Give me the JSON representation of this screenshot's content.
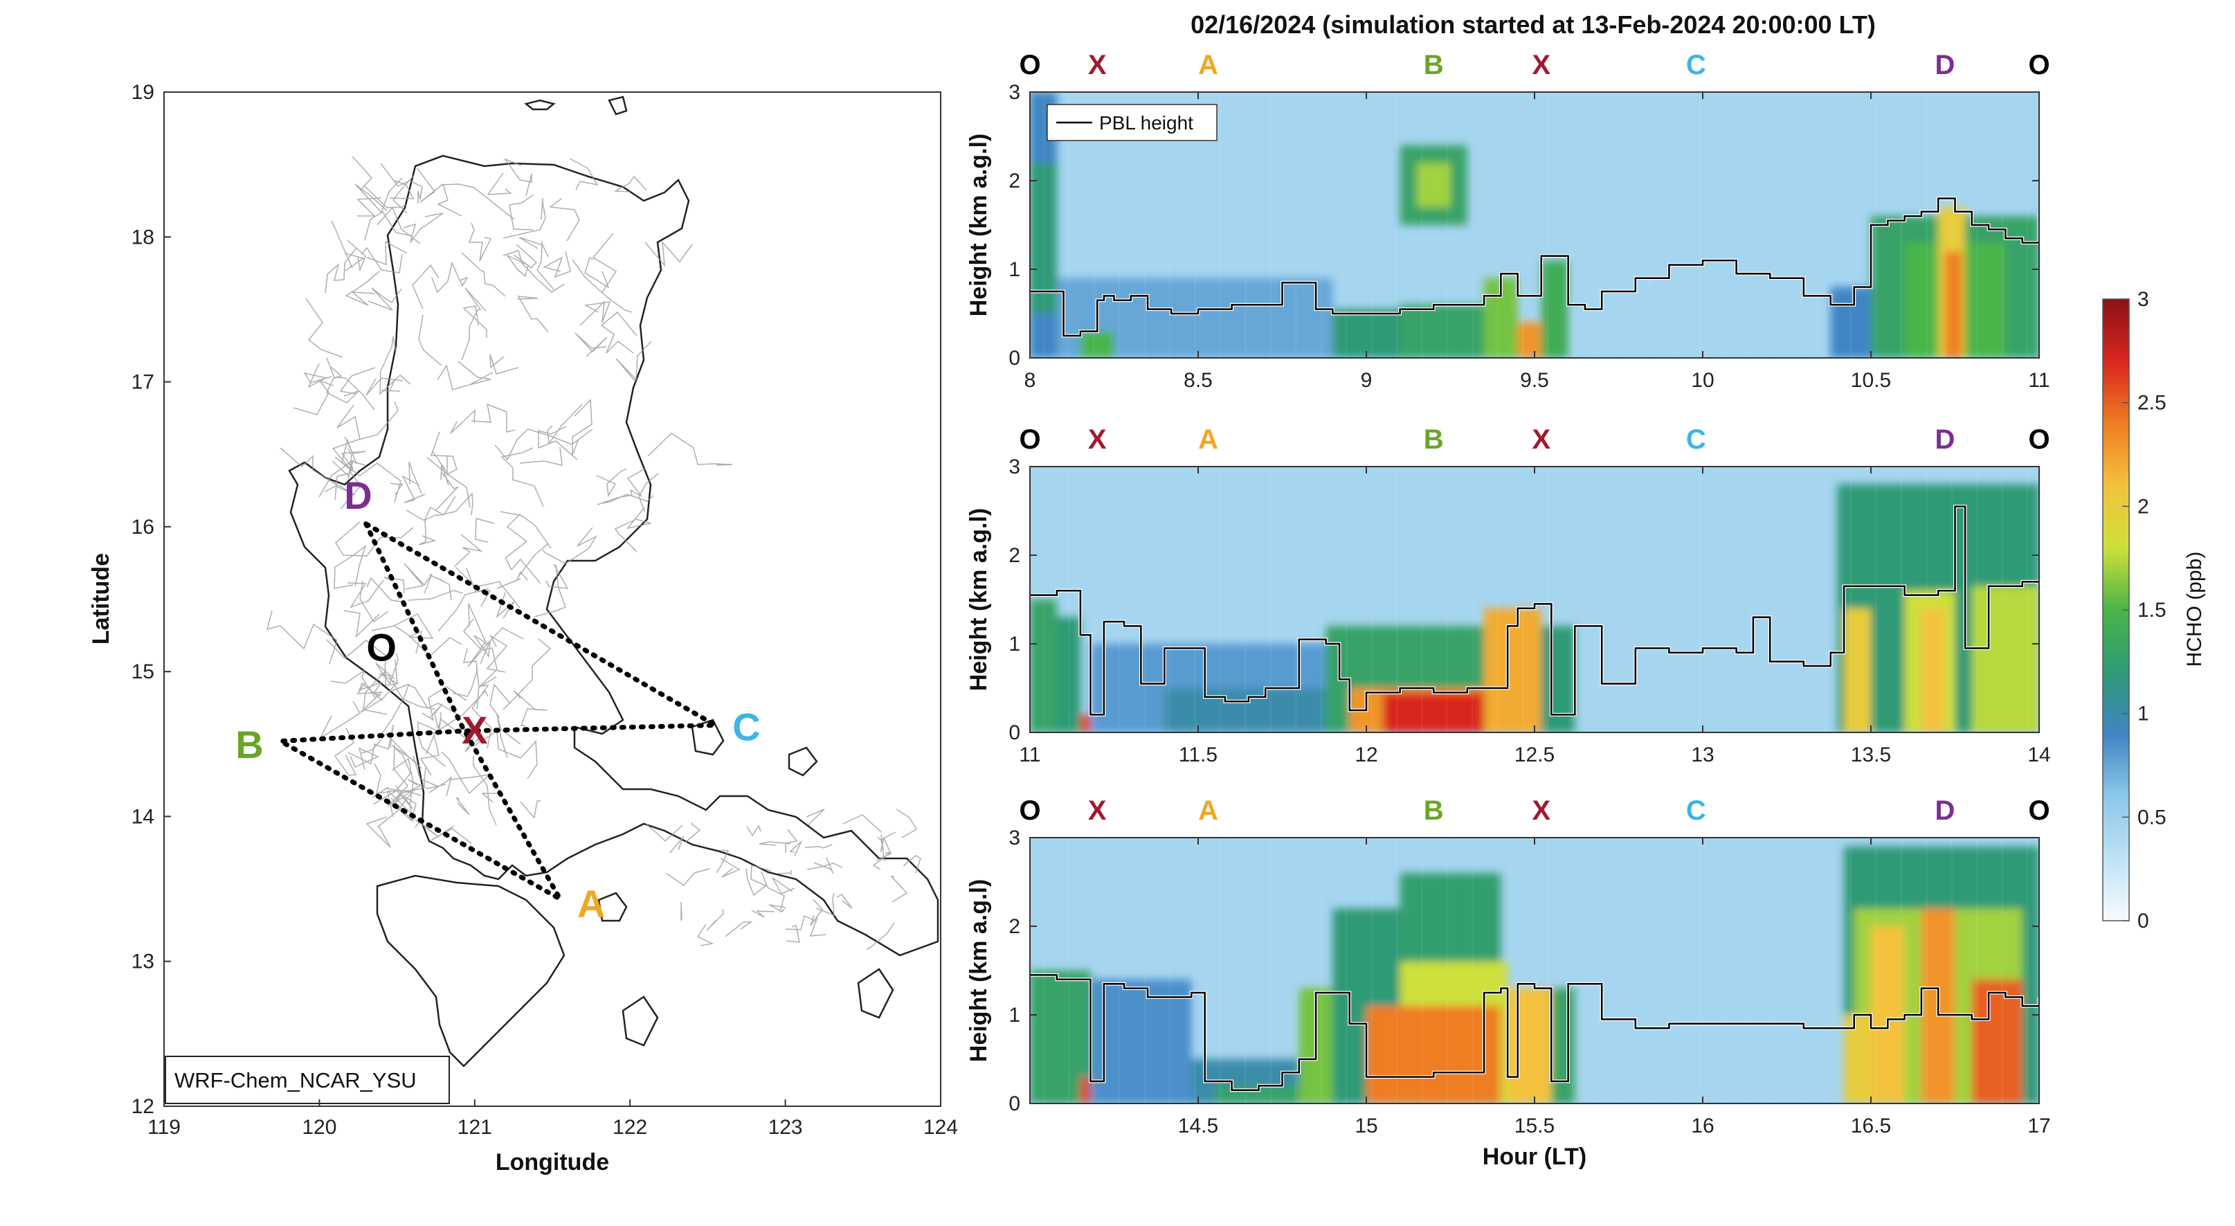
{
  "figure": {
    "title": "02/16/2024 (simulation started at 13-Feb-2024 20:00:00 LT)"
  },
  "colors": {
    "O": "#000000",
    "X": "#a0192f",
    "A": "#f0a722",
    "B": "#6aa527",
    "C": "#3db4e5",
    "D": "#7b2f94",
    "pbl": "#000000"
  },
  "map": {
    "xlabel": "Longitude",
    "ylabel": "Latitude",
    "xlim": [
      119,
      124
    ],
    "ylim": [
      12,
      19
    ],
    "xticks": [
      "119",
      "120",
      "121",
      "122",
      "123",
      "124"
    ],
    "yticks": [
      "12",
      "13",
      "14",
      "15",
      "16",
      "17",
      "18",
      "19"
    ],
    "model_label": "WRF-Chem_NCAR_YSU",
    "points": [
      {
        "name": "D",
        "lon": 120.25,
        "lat": 16.22
      },
      {
        "name": "O",
        "lon": 120.4,
        "lat": 15.17
      },
      {
        "name": "X",
        "lon": 121.0,
        "lat": 14.6
      },
      {
        "name": "B",
        "lon": 119.55,
        "lat": 14.5
      },
      {
        "name": "C",
        "lon": 122.75,
        "lat": 14.62
      },
      {
        "name": "A",
        "lon": 121.75,
        "lat": 13.4
      }
    ],
    "route": [
      {
        "lon": 120.3,
        "lat": 16.02
      },
      {
        "lon": 120.92,
        "lat": 14.62
      },
      {
        "lon": 121.55,
        "lat": 13.43
      },
      {
        "lon": 119.75,
        "lat": 14.52
      },
      {
        "lon": 120.92,
        "lat": 14.59
      },
      {
        "lon": 122.55,
        "lat": 14.63
      },
      {
        "lon": 120.3,
        "lat": 16.02
      }
    ]
  },
  "colorbar": {
    "label": "HCHO (ppb)",
    "ticks": [
      "0",
      "0.5",
      "1",
      "1.5",
      "2",
      "2.5",
      "3"
    ],
    "range": [
      0,
      3
    ],
    "stops": [
      "#f7fcff",
      "#bfe2f5",
      "#8cc8ea",
      "#3f85c4",
      "#2f9a76",
      "#49b548",
      "#cde03a",
      "#f4c23c",
      "#ef7d22",
      "#d9261f",
      "#8a1214"
    ]
  },
  "chart_data": [
    {
      "type": "heatmap",
      "panel": "top",
      "xlabel": "",
      "ylabel": "Height (km a.g.l)",
      "xlim": [
        8,
        11
      ],
      "ylim": [
        0,
        3
      ],
      "xticks": [
        "8",
        "8.5",
        "9",
        "9.5",
        "10",
        "10.5",
        "11"
      ],
      "yticks": [
        "0",
        "1",
        "2",
        "3"
      ],
      "legend": "PBL height",
      "legend_position": "top-left",
      "point_labels": [
        {
          "label": "O",
          "x": 8.0
        },
        {
          "label": "X",
          "x": 8.2
        },
        {
          "label": "A",
          "x": 8.53
        },
        {
          "label": "B",
          "x": 9.2
        },
        {
          "label": "X",
          "x": 9.52
        },
        {
          "label": "C",
          "x": 9.98
        },
        {
          "label": "D",
          "x": 10.72
        },
        {
          "label": "O",
          "x": 11.0
        }
      ],
      "pbl_height": {
        "x": [
          8.0,
          8.08,
          8.1,
          8.15,
          8.18,
          8.2,
          8.22,
          8.25,
          8.3,
          8.35,
          8.42,
          8.5,
          8.6,
          8.7,
          8.75,
          8.8,
          8.85,
          8.9,
          9.0,
          9.1,
          9.2,
          9.3,
          9.35,
          9.4,
          9.45,
          9.5,
          9.52,
          9.55,
          9.6,
          9.65,
          9.7,
          9.8,
          9.9,
          10.0,
          10.1,
          10.2,
          10.3,
          10.38,
          10.45,
          10.5,
          10.55,
          10.6,
          10.65,
          10.7,
          10.75,
          10.8,
          10.85,
          10.9,
          10.95,
          11.0
        ],
        "y": [
          0.75,
          0.75,
          0.25,
          0.3,
          0.3,
          0.65,
          0.7,
          0.65,
          0.7,
          0.55,
          0.5,
          0.55,
          0.6,
          0.6,
          0.85,
          0.85,
          0.55,
          0.5,
          0.5,
          0.55,
          0.6,
          0.6,
          0.7,
          0.95,
          0.7,
          0.7,
          1.15,
          1.15,
          0.6,
          0.55,
          0.75,
          0.9,
          1.05,
          1.1,
          0.95,
          0.9,
          0.7,
          0.6,
          0.8,
          1.5,
          1.55,
          1.6,
          1.65,
          1.8,
          1.65,
          1.5,
          1.45,
          1.35,
          1.3,
          1.65
        ]
      },
      "hcho_cells": [
        {
          "x0": 8.0,
          "x1": 8.08,
          "y0": 0.0,
          "y1": 3.0,
          "v": 0.9
        },
        {
          "x0": 8.0,
          "x1": 8.08,
          "y0": 0.5,
          "y1": 2.2,
          "v": 1.2
        },
        {
          "x0": 8.08,
          "x1": 8.9,
          "y0": 0.0,
          "y1": 0.9,
          "v": 0.75
        },
        {
          "x0": 8.15,
          "x1": 8.25,
          "y0": 0.0,
          "y1": 0.3,
          "v": 1.5
        },
        {
          "x0": 8.9,
          "x1": 9.4,
          "y0": 0.0,
          "y1": 0.55,
          "v": 1.2
        },
        {
          "x0": 9.1,
          "x1": 9.35,
          "y0": 0.0,
          "y1": 0.6,
          "v": 1.3
        },
        {
          "x0": 9.35,
          "x1": 9.45,
          "y0": 0.0,
          "y1": 0.9,
          "v": 1.6
        },
        {
          "x0": 9.45,
          "x1": 9.52,
          "y0": 0.0,
          "y1": 0.4,
          "v": 2.3
        },
        {
          "x0": 9.52,
          "x1": 9.6,
          "y0": 0.0,
          "y1": 1.1,
          "v": 1.4
        },
        {
          "x0": 9.1,
          "x1": 9.3,
          "y0": 1.5,
          "y1": 2.4,
          "v": 1.3
        },
        {
          "x0": 9.15,
          "x1": 9.25,
          "y0": 1.7,
          "y1": 2.2,
          "v": 1.7
        },
        {
          "x0": 10.38,
          "x1": 10.5,
          "y0": 0.0,
          "y1": 0.8,
          "v": 0.9
        },
        {
          "x0": 10.5,
          "x1": 11.0,
          "y0": 0.0,
          "y1": 1.6,
          "v": 1.3
        },
        {
          "x0": 10.6,
          "x1": 10.9,
          "y0": 0.0,
          "y1": 1.3,
          "v": 1.5
        },
        {
          "x0": 10.7,
          "x1": 10.78,
          "y0": 0.0,
          "y1": 1.7,
          "v": 2.0
        },
        {
          "x0": 10.72,
          "x1": 10.77,
          "y0": 0.0,
          "y1": 1.2,
          "v": 2.4
        }
      ]
    },
    {
      "type": "heatmap",
      "panel": "middle",
      "xlabel": "",
      "ylabel": "Height (km a.g.l)",
      "xlim": [
        11,
        14
      ],
      "ylim": [
        0,
        3
      ],
      "xticks": [
        "11",
        "11.5",
        "12",
        "12.5",
        "13",
        "13.5",
        "14"
      ],
      "yticks": [
        "0",
        "1",
        "2",
        "3"
      ],
      "point_labels": [
        {
          "label": "O",
          "x": 11.0
        },
        {
          "label": "X",
          "x": 11.2
        },
        {
          "label": "A",
          "x": 11.53
        },
        {
          "label": "B",
          "x": 12.2
        },
        {
          "label": "X",
          "x": 12.52
        },
        {
          "label": "C",
          "x": 12.98
        },
        {
          "label": "D",
          "x": 13.72
        },
        {
          "label": "O",
          "x": 14.0
        }
      ],
      "pbl_height": {
        "x": [
          11.0,
          11.08,
          11.15,
          11.18,
          11.22,
          11.28,
          11.33,
          11.4,
          11.48,
          11.52,
          11.58,
          11.65,
          11.7,
          11.8,
          11.88,
          11.92,
          11.95,
          12.0,
          12.1,
          12.2,
          12.3,
          12.35,
          12.42,
          12.45,
          12.5,
          12.55,
          12.62,
          12.7,
          12.8,
          12.9,
          13.0,
          13.1,
          13.15,
          13.2,
          13.3,
          13.38,
          13.42,
          13.5,
          13.6,
          13.7,
          13.75,
          13.78,
          13.85,
          13.95,
          14.0
        ],
        "y": [
          1.55,
          1.6,
          1.1,
          0.2,
          1.25,
          1.2,
          0.55,
          0.95,
          0.95,
          0.4,
          0.35,
          0.4,
          0.5,
          1.05,
          1.0,
          0.6,
          0.25,
          0.45,
          0.5,
          0.45,
          0.5,
          0.5,
          1.2,
          1.4,
          1.45,
          0.2,
          1.2,
          0.55,
          0.95,
          0.9,
          0.95,
          0.9,
          1.3,
          0.8,
          0.75,
          0.9,
          1.65,
          1.65,
          1.55,
          1.6,
          2.55,
          0.95,
          1.65,
          1.7,
          1.65
        ]
      },
      "hcho_cells": [
        {
          "x0": 11.0,
          "x1": 11.08,
          "y0": 0.0,
          "y1": 1.5,
          "v": 1.3
        },
        {
          "x0": 11.08,
          "x1": 11.15,
          "y0": 0.0,
          "y1": 1.3,
          "v": 1.2
        },
        {
          "x0": 11.15,
          "x1": 11.18,
          "y0": 0.0,
          "y1": 0.2,
          "v": 2.6
        },
        {
          "x0": 11.18,
          "x1": 11.9,
          "y0": 0.0,
          "y1": 1.0,
          "v": 0.8
        },
        {
          "x0": 11.4,
          "x1": 11.9,
          "y0": 0.0,
          "y1": 0.5,
          "v": 1.0
        },
        {
          "x0": 11.88,
          "x1": 12.45,
          "y0": 0.0,
          "y1": 1.2,
          "v": 1.3
        },
        {
          "x0": 11.95,
          "x1": 12.45,
          "y0": 0.0,
          "y1": 0.5,
          "v": 2.3
        },
        {
          "x0": 12.05,
          "x1": 12.35,
          "y0": 0.0,
          "y1": 0.45,
          "v": 2.7
        },
        {
          "x0": 12.35,
          "x1": 12.52,
          "y0": 0.0,
          "y1": 1.4,
          "v": 2.2
        },
        {
          "x0": 12.52,
          "x1": 12.62,
          "y0": 0.0,
          "y1": 1.2,
          "v": 1.2
        },
        {
          "x0": 13.4,
          "x1": 14.0,
          "y0": 0.0,
          "y1": 2.8,
          "v": 1.2
        },
        {
          "x0": 13.42,
          "x1": 13.5,
          "y0": 0.0,
          "y1": 1.4,
          "v": 2.0
        },
        {
          "x0": 13.6,
          "x1": 13.75,
          "y0": 0.0,
          "y1": 1.6,
          "v": 1.8
        },
        {
          "x0": 13.65,
          "x1": 13.72,
          "y0": 0.0,
          "y1": 1.4,
          "v": 2.1
        },
        {
          "x0": 13.8,
          "x1": 14.0,
          "y0": 0.0,
          "y1": 1.65,
          "v": 1.75
        }
      ]
    },
    {
      "type": "heatmap",
      "panel": "bottom",
      "xlabel": "Hour (LT)",
      "ylabel": "Height (km a.g.l)",
      "xlim": [
        14,
        17
      ],
      "ylim": [
        0,
        3
      ],
      "xticks": [
        "14.5",
        "15",
        "15.5",
        "16",
        "16.5",
        "17"
      ],
      "yticks": [
        "0",
        "1",
        "2",
        "3"
      ],
      "point_labels": [
        {
          "label": "O",
          "x": 14.0
        },
        {
          "label": "X",
          "x": 14.2
        },
        {
          "label": "A",
          "x": 14.53
        },
        {
          "label": "B",
          "x": 15.2
        },
        {
          "label": "X",
          "x": 15.52
        },
        {
          "label": "C",
          "x": 15.98
        },
        {
          "label": "D",
          "x": 16.72
        },
        {
          "label": "O",
          "x": 17.0
        }
      ],
      "pbl_height": {
        "x": [
          14.0,
          14.08,
          14.15,
          14.18,
          14.22,
          14.28,
          14.35,
          14.48,
          14.52,
          14.6,
          14.68,
          14.75,
          14.8,
          14.85,
          14.9,
          14.95,
          15.0,
          15.1,
          15.2,
          15.3,
          15.35,
          15.4,
          15.42,
          15.45,
          15.5,
          15.55,
          15.6,
          15.7,
          15.8,
          15.9,
          16.0,
          16.1,
          16.2,
          16.3,
          16.4,
          16.45,
          16.5,
          16.55,
          16.6,
          16.65,
          16.7,
          16.8,
          16.85,
          16.9,
          16.95,
          17.0
        ],
        "y": [
          1.45,
          1.4,
          1.4,
          0.25,
          1.35,
          1.3,
          1.2,
          1.25,
          0.25,
          0.15,
          0.2,
          0.35,
          0.5,
          1.25,
          1.25,
          0.9,
          0.3,
          0.3,
          0.35,
          0.35,
          1.25,
          1.3,
          0.3,
          1.35,
          1.3,
          0.25,
          1.35,
          0.95,
          0.85,
          0.9,
          0.9,
          0.9,
          0.9,
          0.85,
          0.85,
          1.0,
          0.85,
          0.95,
          1.0,
          1.3,
          1.0,
          0.95,
          1.25,
          1.2,
          1.1,
          1.2
        ]
      },
      "hcho_cells": [
        {
          "x0": 14.0,
          "x1": 14.18,
          "y0": 0.0,
          "y1": 1.5,
          "v": 1.3
        },
        {
          "x0": 14.15,
          "x1": 14.18,
          "y0": 0.0,
          "y1": 0.3,
          "v": 2.6
        },
        {
          "x0": 14.18,
          "x1": 14.48,
          "y0": 0.0,
          "y1": 1.4,
          "v": 0.85
        },
        {
          "x0": 14.48,
          "x1": 14.8,
          "y0": 0.0,
          "y1": 0.5,
          "v": 1.0
        },
        {
          "x0": 14.55,
          "x1": 14.8,
          "y0": 0.0,
          "y1": 0.2,
          "v": 1.3
        },
        {
          "x0": 14.8,
          "x1": 14.92,
          "y0": 0.0,
          "y1": 1.3,
          "v": 1.6
        },
        {
          "x0": 14.9,
          "x1": 15.1,
          "y0": 0.0,
          "y1": 2.2,
          "v": 1.2
        },
        {
          "x0": 15.1,
          "x1": 15.4,
          "y0": 0.0,
          "y1": 2.6,
          "v": 1.25
        },
        {
          "x0": 15.1,
          "x1": 15.42,
          "y0": 0.0,
          "y1": 1.6,
          "v": 1.8
        },
        {
          "x0": 15.0,
          "x1": 15.4,
          "y0": 0.0,
          "y1": 1.1,
          "v": 2.4
        },
        {
          "x0": 15.42,
          "x1": 15.55,
          "y0": 0.0,
          "y1": 1.3,
          "v": 2.1
        },
        {
          "x0": 15.55,
          "x1": 15.62,
          "y0": 0.0,
          "y1": 1.3,
          "v": 1.3
        },
        {
          "x0": 16.42,
          "x1": 17.0,
          "y0": 0.0,
          "y1": 2.9,
          "v": 1.2
        },
        {
          "x0": 16.45,
          "x1": 16.95,
          "y0": 0.0,
          "y1": 2.2,
          "v": 1.7
        },
        {
          "x0": 16.5,
          "x1": 16.6,
          "y0": 0.0,
          "y1": 2.0,
          "v": 2.1
        },
        {
          "x0": 16.65,
          "x1": 16.75,
          "y0": 0.0,
          "y1": 2.2,
          "v": 2.3
        },
        {
          "x0": 16.8,
          "x1": 16.95,
          "y0": 0.0,
          "y1": 1.4,
          "v": 2.5
        },
        {
          "x0": 16.42,
          "x1": 16.5,
          "y0": 0.0,
          "y1": 1.0,
          "v": 2.0
        }
      ]
    }
  ]
}
